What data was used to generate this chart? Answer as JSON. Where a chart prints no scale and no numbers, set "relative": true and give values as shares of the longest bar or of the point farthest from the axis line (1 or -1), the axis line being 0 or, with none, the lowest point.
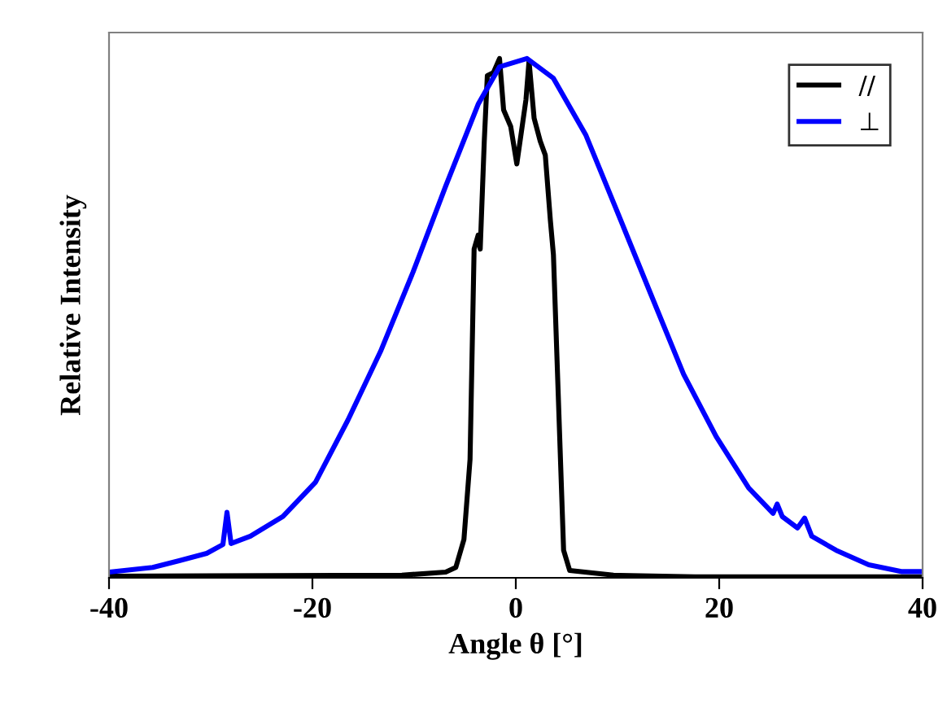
{
  "chart_data": {
    "type": "line",
    "xlabel": "Angle θ [°]",
    "ylabel": "Relative Intensity",
    "relative": true,
    "xlim": [
      -40,
      40
    ],
    "xticks": [
      -40,
      -20,
      0,
      20,
      40
    ],
    "tick_labels": "x",
    "grid": false,
    "legend": "top right",
    "marker": "none",
    "line_style": "solid",
    "series": [
      {
        "name": "//",
        "color": "#000000",
        "x": [
          -40,
          -11.2,
          -6.9,
          -5.9,
          -5.1,
          -4.5,
          -4.1,
          -3.7,
          -3.5,
          -3.1,
          -2.8,
          -2.2,
          -1.6,
          -1.2,
          -0.5,
          0.1,
          0.5,
          1.0,
          1.3,
          1.8,
          2.4,
          2.9,
          3.4,
          3.7,
          4.2,
          4.7,
          5.3,
          9.6,
          17.6,
          40
        ],
        "values": [
          0.003,
          0.005,
          0.011,
          0.02,
          0.074,
          0.228,
          0.633,
          0.66,
          0.633,
          0.841,
          0.967,
          0.973,
          1,
          0.901,
          0.869,
          0.797,
          0.852,
          0.921,
          0.995,
          0.885,
          0.841,
          0.814,
          0.688,
          0.622,
          0.337,
          0.053,
          0.014,
          0.005,
          0.002,
          0.002
        ]
      },
      {
        "name": "⊥",
        "color": "#0000ff",
        "x": [
          -40,
          -35.7,
          -33.1,
          -30.4,
          -28.8,
          -28.4,
          -28,
          -26.1,
          -22.9,
          -19.7,
          -16.5,
          -13.3,
          -10.1,
          -6.9,
          -3.7,
          -1.6,
          1.1,
          3.7,
          6.9,
          10.1,
          13.3,
          16.5,
          19.7,
          22.9,
          25.3,
          25.7,
          26.2,
          27.7,
          28.4,
          29.1,
          31.5,
          34.7,
          37.9,
          40
        ],
        "values": [
          0.011,
          0.02,
          0.033,
          0.047,
          0.064,
          0.126,
          0.066,
          0.08,
          0.118,
          0.184,
          0.304,
          0.436,
          0.589,
          0.754,
          0.912,
          0.984,
          1,
          0.962,
          0.852,
          0.699,
          0.545,
          0.392,
          0.272,
          0.173,
          0.124,
          0.142,
          0.118,
          0.096,
          0.115,
          0.08,
          0.053,
          0.025,
          0.012,
          0.012
        ]
      }
    ]
  }
}
